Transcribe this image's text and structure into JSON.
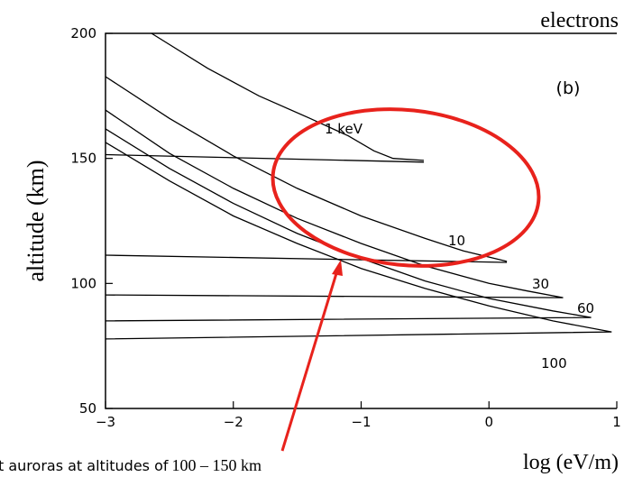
{
  "chart_data": {
    "type": "line",
    "title": "electrons",
    "panel_label": "(b)",
    "ylabel": "altitude (km)",
    "xlabel": "log (eV/m)",
    "annotations": [
      "t auroras at altitudes of",
      "100 – 150 km"
    ],
    "xlim": [
      -3,
      1
    ],
    "ylim": [
      50,
      200
    ],
    "xticks": [
      {
        "value": -3,
        "label": "−3"
      },
      {
        "value": -2,
        "label": "−2"
      },
      {
        "value": -1,
        "label": "−1"
      },
      0,
      1
    ],
    "yticks": [
      50,
      100,
      150,
      200
    ],
    "series": [
      {
        "name": "1 keV",
        "color": "#000000",
        "x": [
          -2.64,
          -2.2,
          -1.8,
          -1.4,
          -1.1,
          -0.9,
          -0.75,
          -0.51,
          null,
          -3,
          -0.51
        ],
        "values": [
          200,
          186,
          175,
          166,
          159,
          153,
          150,
          149.2,
          null,
          151.5,
          148.5
        ]
      },
      {
        "name": "10",
        "color": "#000000",
        "x": [
          -3,
          -2.5,
          -2,
          -1.5,
          -1,
          -0.5,
          -0.2,
          0.14,
          null,
          -3,
          0.14
        ],
        "values": [
          182.7,
          166,
          151,
          138,
          127,
          118,
          113,
          108.8,
          null,
          111.3,
          108.4
        ]
      },
      {
        "name": "30",
        "color": "#000000",
        "x": [
          -3,
          -2.5,
          -2,
          -1.5,
          -1,
          -0.5,
          0,
          0.3,
          0.58,
          null,
          -3,
          0.58
        ],
        "values": [
          169.3,
          152,
          138,
          126,
          116,
          107,
          100,
          97,
          94.3,
          null,
          95.4,
          94.3
        ]
      },
      {
        "name": "60",
        "color": "#000000",
        "x": [
          -3,
          -2.5,
          -2,
          -1.5,
          -1,
          -0.5,
          0,
          0.5,
          0.8,
          null,
          -3,
          0.8
        ],
        "values": [
          161.8,
          146,
          132,
          120,
          110,
          101,
          94,
          89,
          86.4,
          null,
          85,
          86.4
        ]
      },
      {
        "name": "100",
        "color": "#000000",
        "x": [
          -3,
          -2.5,
          -2,
          -1.5,
          -1,
          -0.5,
          0,
          0.5,
          0.96,
          null,
          -3,
          0.96
        ],
        "values": [
          156.4,
          141,
          127,
          116,
          106,
          98,
          91,
          85,
          80.6,
          null,
          77.8,
          80.6
        ]
      }
    ]
  }
}
